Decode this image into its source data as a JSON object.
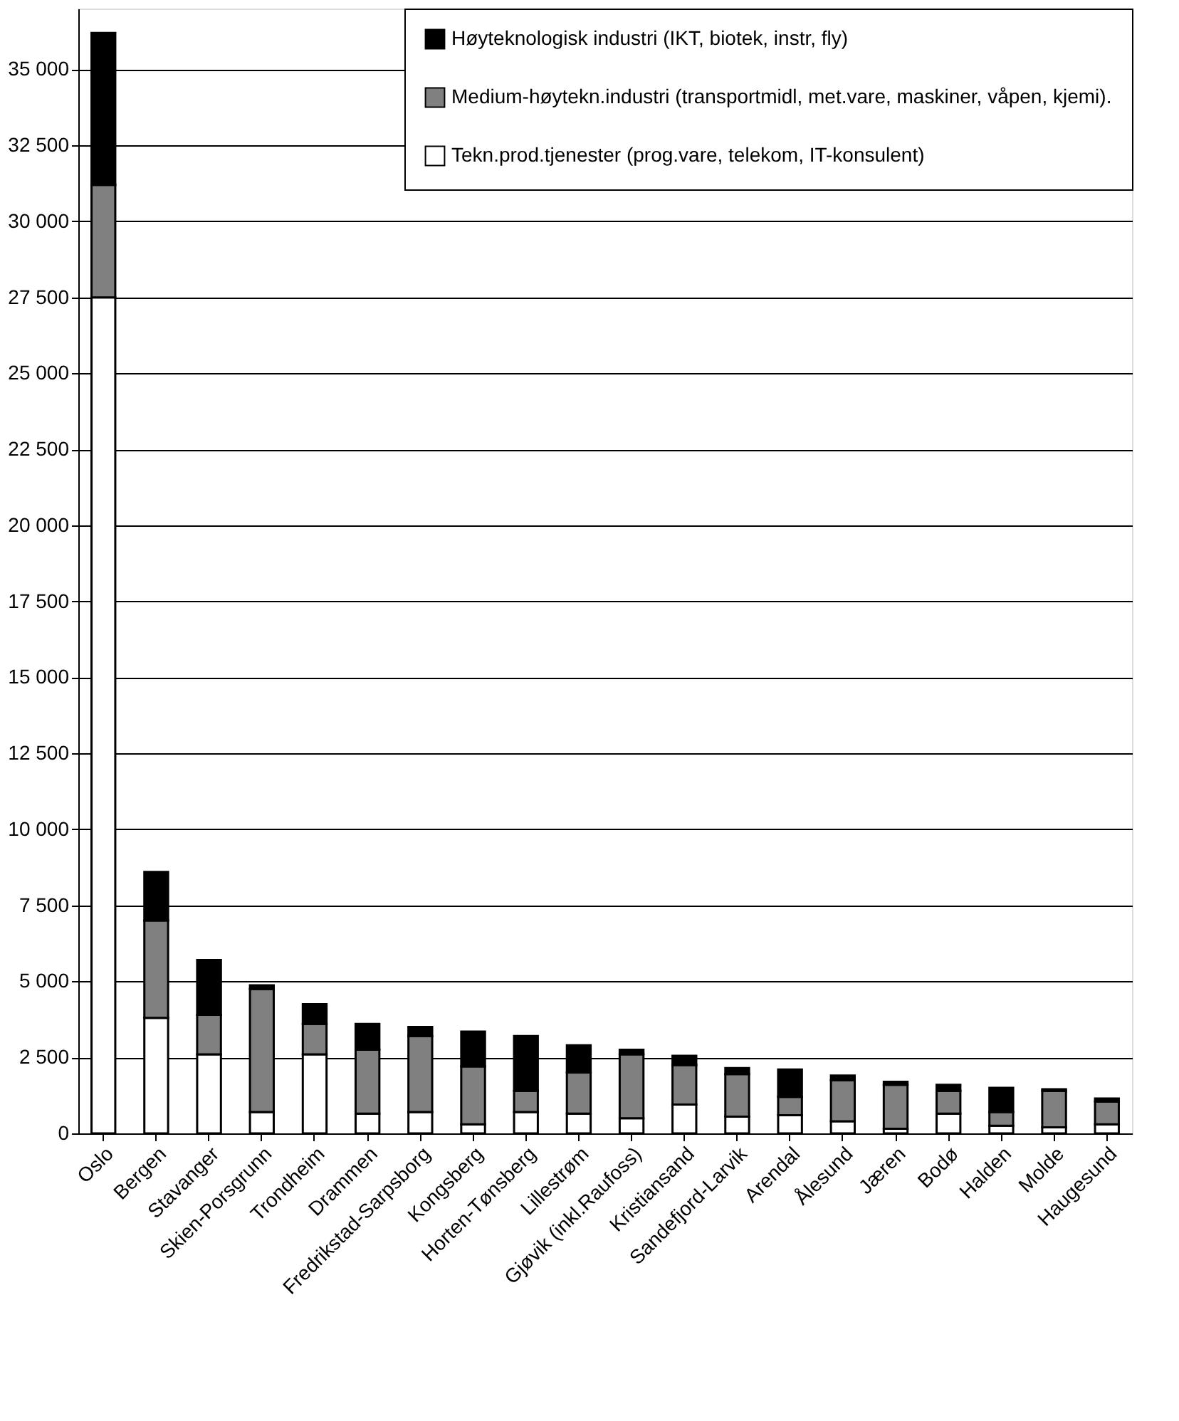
{
  "chart_data": {
    "type": "bar",
    "stacked": true,
    "categories": [
      "Oslo",
      "Bergen",
      "Stavanger",
      "Skien-Porsgrunn",
      "Trondheim",
      "Drammen",
      "Fredrikstad-Sarpsborg",
      "Kongsberg",
      "Horten-Tønsberg",
      "Lillestrøm",
      "Gjøvik (inkl.Raufoss)",
      "Kristiansand",
      "Sandefjord-Larvik",
      "Arendal",
      "Ålesund",
      "Jæren",
      "Bodø",
      "Halden",
      "Molde",
      "Haugesund"
    ],
    "series": [
      {
        "name": "Tekn.prod.tjenester (prog.vare, telekom, IT-konsulent)",
        "color": "#ffffff",
        "values": [
          27500,
          3800,
          2600,
          700,
          2600,
          650,
          700,
          300,
          700,
          650,
          500,
          950,
          550,
          600,
          400,
          150,
          650,
          250,
          200,
          300
        ]
      },
      {
        "name": "Medium-høytekn.industri (transportmidl, met.vare, maskiner, våpen, kjemi).",
        "color": "#808080",
        "values": [
          3700,
          3200,
          1300,
          4050,
          1000,
          2100,
          2500,
          1900,
          700,
          1350,
          2100,
          1300,
          1400,
          600,
          1350,
          1450,
          750,
          450,
          1200,
          750
        ]
      },
      {
        "name": "Høyteknologisk industri (IKT, biotek, instr, fly)",
        "color": "#000000",
        "values": [
          5000,
          1600,
          1800,
          120,
          650,
          850,
          300,
          1150,
          1800,
          900,
          150,
          300,
          200,
          900,
          150,
          100,
          200,
          800,
          50,
          100
        ]
      }
    ],
    "ylim": [
      0,
      37000
    ],
    "yticks": [
      0,
      {
        "value": 2500,
        "label": "2 500"
      },
      {
        "value": 5000,
        "label": "5 000"
      },
      {
        "value": 7500,
        "label": "7 500"
      },
      {
        "value": 10000,
        "label": "10 000"
      },
      {
        "value": 12500,
        "label": "12 500"
      },
      {
        "value": 15000,
        "label": "15 000"
      },
      {
        "value": 17500,
        "label": "17 500"
      },
      {
        "value": 20000,
        "label": "20 000"
      },
      {
        "value": 22500,
        "label": "22 500"
      },
      {
        "value": 25000,
        "label": "25 000"
      },
      {
        "value": 27500,
        "label": "27 500"
      },
      {
        "value": 30000,
        "label": "30 000"
      },
      {
        "value": 32500,
        "label": "32 500"
      },
      {
        "value": 35000,
        "label": "35 000"
      }
    ],
    "grid": "y",
    "legend": "top right"
  }
}
